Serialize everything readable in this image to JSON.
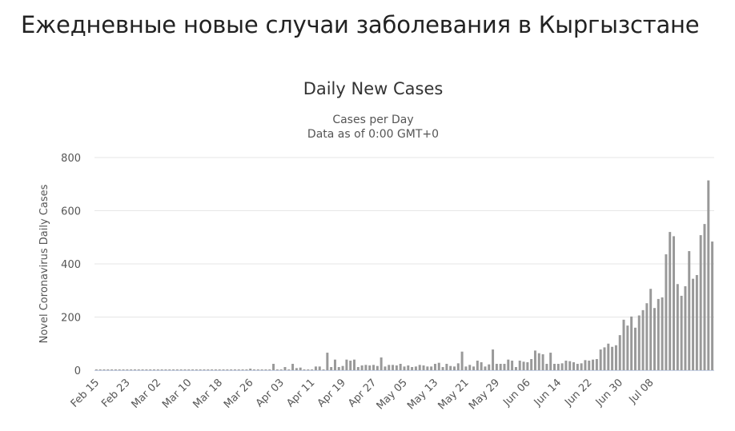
{
  "page": {
    "heading": "Ежедневные новые случаи заболевания в Кыргызстане"
  },
  "chart_data": {
    "type": "bar",
    "title": "Daily New Cases",
    "subtitle_lines": [
      "Cases per Day",
      "Data as of 0:00 GMT+0"
    ],
    "xlabel": "",
    "ylabel": "Novel Coronavirus Daily Cases",
    "ylim": [
      0,
      800
    ],
    "y_ticks": [
      0,
      200,
      400,
      600,
      800
    ],
    "x_tick_labels": [
      "Feb 15",
      "Feb 23",
      "Mar 02",
      "Mar 10",
      "Mar 18",
      "Mar 26",
      "Apr 03",
      "Apr 11",
      "Apr 19",
      "Apr 27",
      "May 05",
      "May 13",
      "May 21",
      "May 29",
      "Jun 06",
      "Jun 14",
      "Jun 22",
      "Jun 30",
      "Jul 08"
    ],
    "x_start_label": "Feb 15",
    "tick_interval_days": 8,
    "grid": true,
    "legend": false,
    "bar_color": "#999999",
    "gridline_color": "#e6e6e6",
    "series": [
      {
        "values": [
          0,
          0,
          0,
          0,
          0,
          0,
          0,
          0,
          0,
          0,
          0,
          0,
          0,
          0,
          0,
          0,
          0,
          0,
          0,
          0,
          0,
          0,
          0,
          0,
          0,
          0,
          0,
          0,
          0,
          0,
          0,
          0,
          0,
          0,
          0,
          0,
          0,
          0,
          0,
          0,
          6,
          0,
          0,
          0,
          0,
          0,
          24,
          0,
          0,
          12,
          0,
          24,
          8,
          10,
          0,
          0,
          0,
          14,
          14,
          0,
          66,
          12,
          40,
          12,
          16,
          40,
          36,
          40,
          12,
          18,
          20,
          18,
          20,
          16,
          48,
          14,
          20,
          20,
          18,
          24,
          14,
          18,
          12,
          14,
          20,
          18,
          14,
          14,
          24,
          28,
          12,
          24,
          16,
          14,
          26,
          70,
          14,
          20,
          14,
          36,
          30,
          14,
          22,
          78,
          24,
          24,
          24,
          40,
          36,
          12,
          36,
          32,
          30,
          42,
          74,
          64,
          60,
          24,
          66,
          24,
          24,
          26,
          36,
          34,
          30,
          24,
          26,
          38,
          36,
          40,
          42,
          78,
          86,
          100,
          88,
          94,
          132,
          190,
          168,
          202,
          160,
          206,
          226,
          252,
          306,
          234,
          268,
          274,
          436,
          520,
          504,
          324,
          280,
          316,
          448,
          344,
          358,
          508,
          550,
          714,
          484
        ]
      }
    ]
  }
}
